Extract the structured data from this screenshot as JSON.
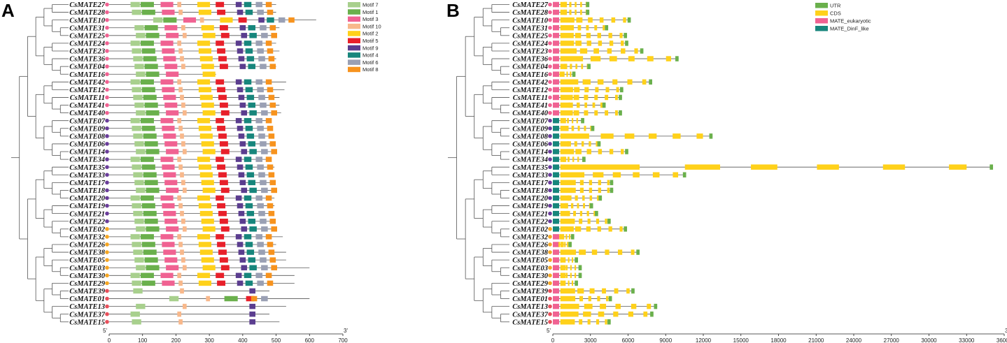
{
  "panels": {
    "a": "A",
    "b": "B"
  },
  "axis_a": {
    "start": "5'",
    "end": "3'",
    "ticks": [
      "0",
      "100",
      "200",
      "300",
      "400",
      "500",
      "600",
      "700"
    ]
  },
  "axis_b": {
    "start": "5'",
    "end": "3'",
    "ticks": [
      "0",
      "3000",
      "6000",
      "9000",
      "12000",
      "15000",
      "18000",
      "21000",
      "24000",
      "27000",
      "30000",
      "33000",
      "36000"
    ]
  },
  "legend_a": [
    {
      "name": "Motif 7",
      "color": "#a8d08d"
    },
    {
      "name": "Motif 1",
      "color": "#6ab04c"
    },
    {
      "name": "Motif 3",
      "color": "#f06292"
    },
    {
      "name": "Motif 10",
      "color": "#f8b88b"
    },
    {
      "name": "Motif 2",
      "color": "#ffd11a"
    },
    {
      "name": "Motif 5",
      "color": "#e8202a"
    },
    {
      "name": "Motif 9",
      "color": "#5b3d8f"
    },
    {
      "name": "Motif 4",
      "color": "#17867c"
    },
    {
      "name": "Motif 6",
      "color": "#9aa0b4"
    },
    {
      "name": "Motif 8",
      "color": "#f7931e"
    }
  ],
  "legend_b": [
    {
      "name": "UTR",
      "color": "#6ab04c"
    },
    {
      "name": "CDS",
      "color": "#ffd11a"
    },
    {
      "name": "MATE_eukaryotic",
      "color": "#f06292"
    },
    {
      "name": "MATE_DinF_like",
      "color": "#17867c"
    }
  ],
  "genes": [
    {
      "name": "CsMATE27",
      "dot": "#f06292"
    },
    {
      "name": "CsMATE28",
      "dot": "#f06292"
    },
    {
      "name": "CsMATE10",
      "dot": "#f06292"
    },
    {
      "name": "CsMATE31",
      "dot": "#f06292"
    },
    {
      "name": "CsMATE25",
      "dot": "#f06292"
    },
    {
      "name": "CsMATE24",
      "dot": "#f06292"
    },
    {
      "name": "CsMATE23",
      "dot": "#f06292"
    },
    {
      "name": "CsMATE36",
      "dot": "#f06292"
    },
    {
      "name": "CsMATE04",
      "dot": "#f06292"
    },
    {
      "name": "CsMATE16",
      "dot": "#f06292"
    },
    {
      "name": "CsMATE42",
      "dot": "#f06292"
    },
    {
      "name": "CsMATE12",
      "dot": "#f06292"
    },
    {
      "name": "CsMATE11",
      "dot": "#f06292"
    },
    {
      "name": "CsMATE41",
      "dot": "#f06292"
    },
    {
      "name": "CsMATE40",
      "dot": "#f06292"
    },
    {
      "name": "CsMATE07",
      "dot": "#6a3d9a"
    },
    {
      "name": "CsMATE09",
      "dot": "#6a3d9a"
    },
    {
      "name": "CsMATE08",
      "dot": "#6a3d9a"
    },
    {
      "name": "CsMATE06",
      "dot": "#6a3d9a"
    },
    {
      "name": "CsMATE14",
      "dot": "#6a3d9a"
    },
    {
      "name": "CsMATE34",
      "dot": "#6a3d9a"
    },
    {
      "name": "CsMATE35",
      "dot": "#6a3d9a"
    },
    {
      "name": "CsMATE33",
      "dot": "#6a3d9a"
    },
    {
      "name": "CsMATE17",
      "dot": "#6a3d9a"
    },
    {
      "name": "CsMATE18",
      "dot": "#6a3d9a"
    },
    {
      "name": "CsMATE20",
      "dot": "#6a3d9a"
    },
    {
      "name": "CsMATE19",
      "dot": "#6a3d9a"
    },
    {
      "name": "CsMATE21",
      "dot": "#6a3d9a"
    },
    {
      "name": "CsMATE22",
      "dot": "#6a3d9a"
    },
    {
      "name": "CsMATE02",
      "dot": "#f5a623"
    },
    {
      "name": "CsMATE32",
      "dot": "#f5a623"
    },
    {
      "name": "CsMATE26",
      "dot": "#f5a623"
    },
    {
      "name": "CsMATE38",
      "dot": "#f5a623"
    },
    {
      "name": "CsMATE05",
      "dot": "#f5a623"
    },
    {
      "name": "CsMATE03",
      "dot": "#f5a623"
    },
    {
      "name": "CsMATE30",
      "dot": "#f5a623"
    },
    {
      "name": "CsMATE29",
      "dot": "#f5a623"
    },
    {
      "name": "CsMATE39",
      "dot": "#e8505b"
    },
    {
      "name": "CsMATE01",
      "dot": "#e8505b"
    },
    {
      "name": "CsMATE13",
      "dot": "#e8505b"
    },
    {
      "name": "CsMATE37",
      "dot": "#e8505b"
    },
    {
      "name": "CsMATE15",
      "dot": "#e8505b"
    }
  ]
}
